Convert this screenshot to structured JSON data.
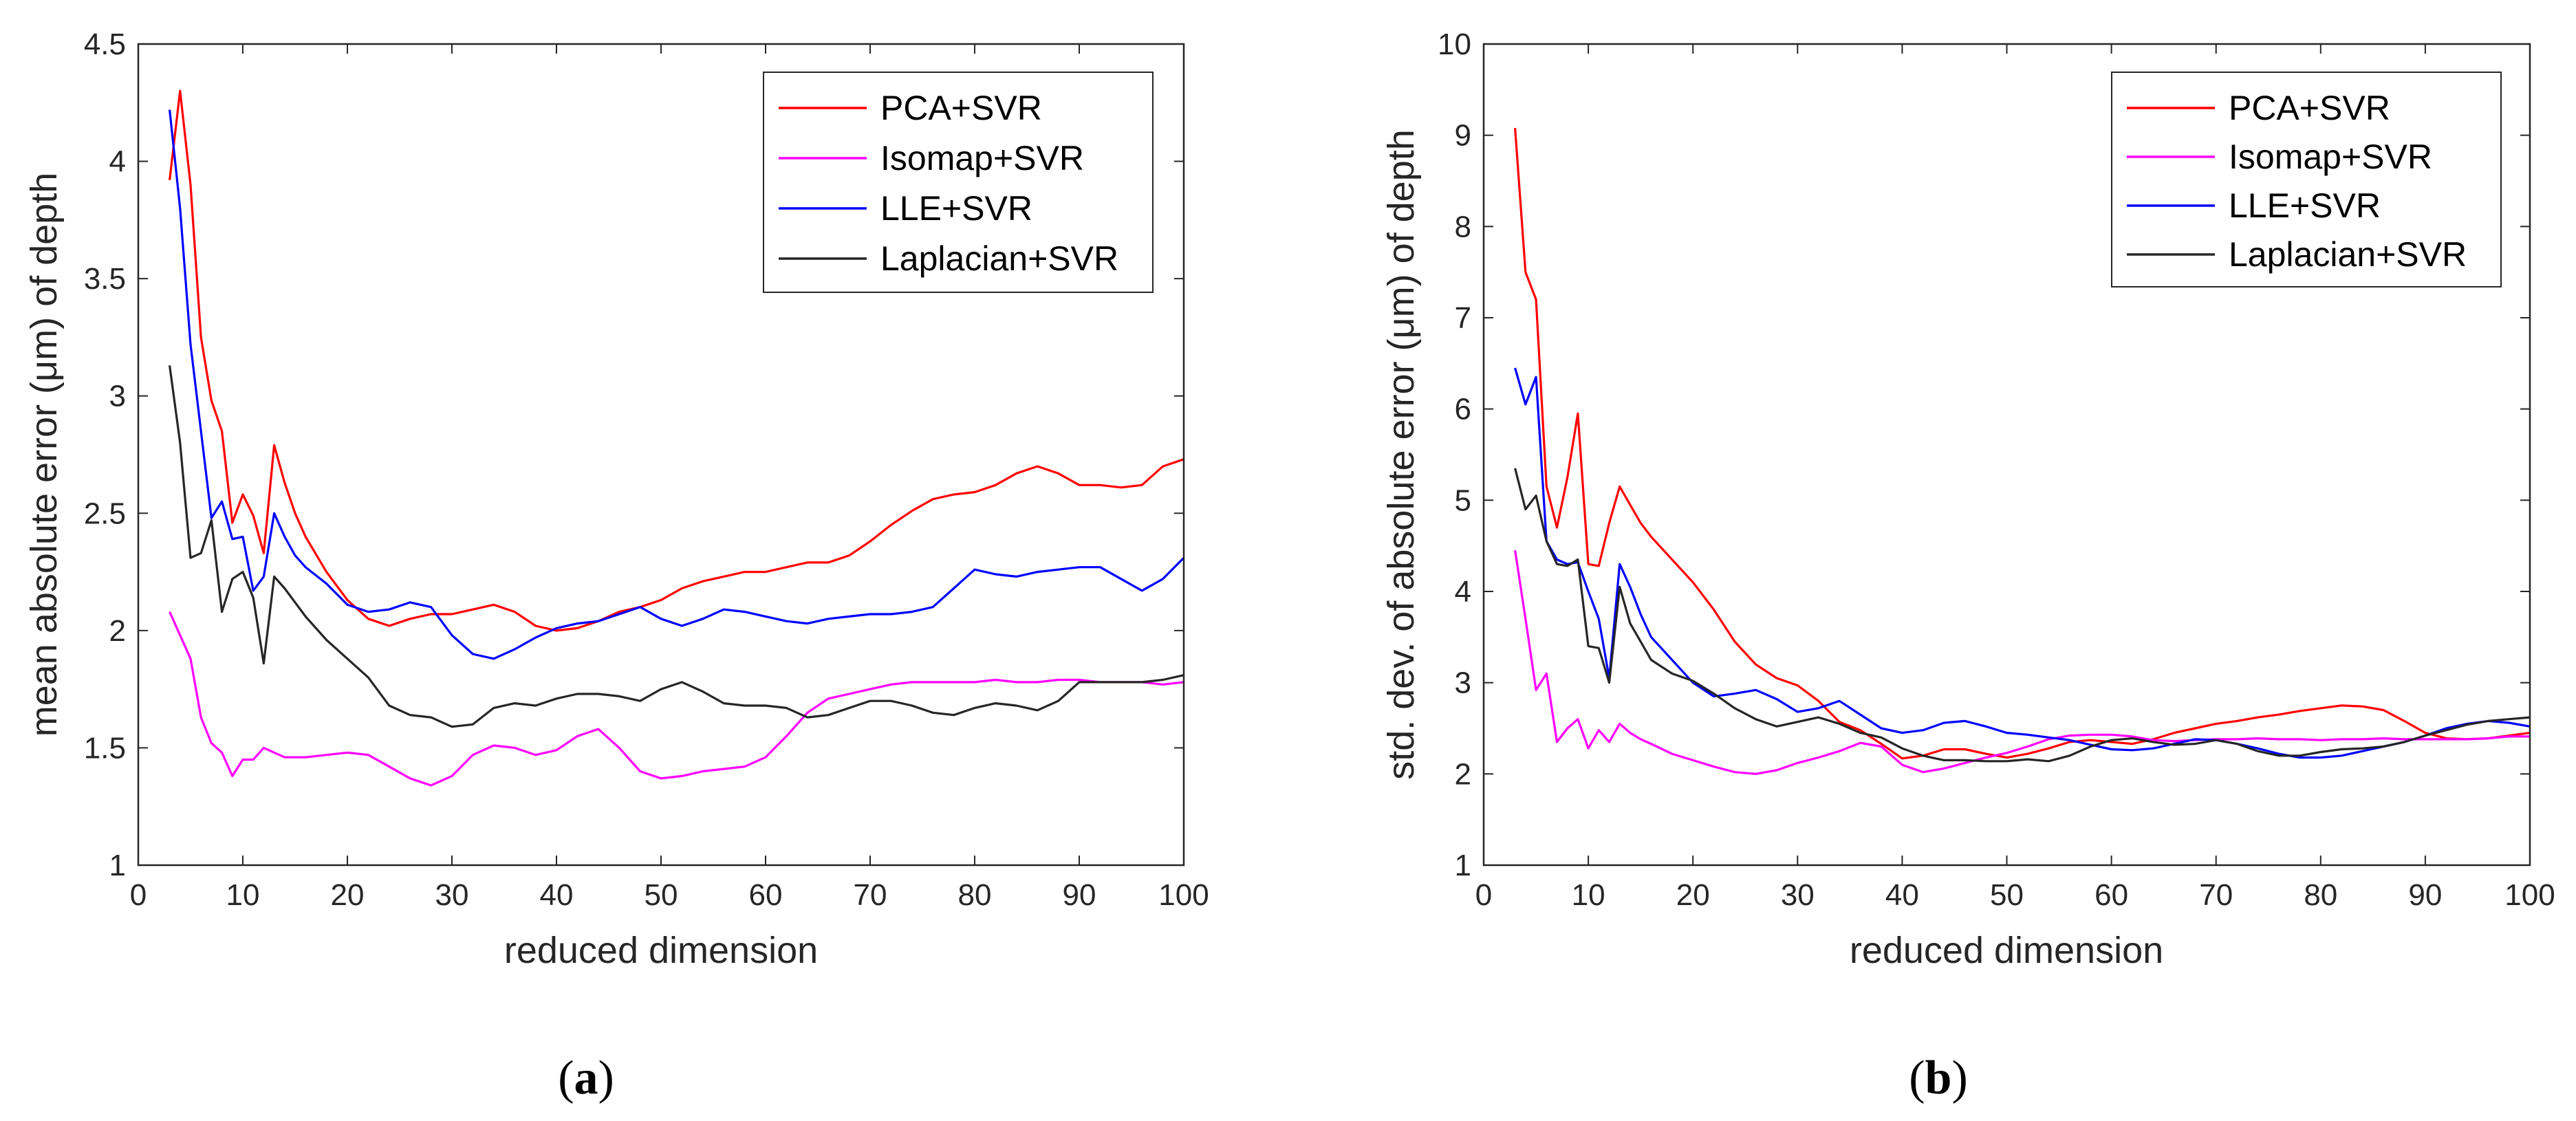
{
  "chart_data": [
    {
      "type": "line",
      "caption": "(a)",
      "caption_paren_open": "(",
      "caption_letter": "a",
      "caption_paren_close": ")",
      "xlabel": "reduced dimension",
      "ylabel": "mean absolute error (μm) of depth",
      "xlim": [
        0,
        100
      ],
      "ylim": [
        1,
        4.5
      ],
      "xticks": [
        "0",
        "10",
        "20",
        "30",
        "40",
        "50",
        "60",
        "70",
        "80",
        "90",
        "100"
      ],
      "yticks": [
        "1",
        "1.5",
        "2",
        "2.5",
        "3",
        "3.5",
        "4",
        "4.5"
      ],
      "legend": [
        "PCA+SVR",
        "Isomap+SVR",
        "LLE+SVR",
        "Laplacian+SVR"
      ],
      "x": [
        3,
        4,
        5,
        6,
        7,
        8,
        9,
        10,
        11,
        12,
        13,
        14,
        15,
        16,
        18,
        20,
        22,
        24,
        26,
        28,
        30,
        32,
        34,
        36,
        38,
        40,
        42,
        44,
        46,
        48,
        50,
        52,
        54,
        56,
        58,
        60,
        62,
        64,
        66,
        68,
        70,
        72,
        74,
        76,
        78,
        80,
        82,
        84,
        86,
        88,
        90,
        92,
        94,
        96,
        98,
        100
      ],
      "series": [
        {
          "name": "PCA+SVR",
          "color": "#ff0000",
          "values": [
            3.92,
            4.3,
            3.9,
            3.25,
            2.98,
            2.85,
            2.46,
            2.58,
            2.49,
            2.33,
            2.79,
            2.63,
            2.5,
            2.4,
            2.25,
            2.13,
            2.05,
            2.02,
            2.05,
            2.07,
            2.07,
            2.09,
            2.11,
            2.08,
            2.02,
            2.0,
            2.01,
            2.04,
            2.08,
            2.1,
            2.13,
            2.18,
            2.21,
            2.23,
            2.25,
            2.25,
            2.27,
            2.29,
            2.29,
            2.32,
            2.38,
            2.45,
            2.51,
            2.56,
            2.58,
            2.59,
            2.62,
            2.67,
            2.7,
            2.67,
            2.62,
            2.62,
            2.61,
            2.62,
            2.7,
            2.73
          ]
        },
        {
          "name": "Isomap+SVR",
          "color": "#ff00ff",
          "values": [
            2.08,
            1.98,
            1.88,
            1.63,
            1.52,
            1.48,
            1.38,
            1.45,
            1.45,
            1.5,
            1.48,
            1.46,
            1.46,
            1.46,
            1.47,
            1.48,
            1.47,
            1.42,
            1.37,
            1.34,
            1.38,
            1.47,
            1.51,
            1.5,
            1.47,
            1.49,
            1.55,
            1.58,
            1.5,
            1.4,
            1.37,
            1.38,
            1.4,
            1.41,
            1.42,
            1.46,
            1.55,
            1.65,
            1.71,
            1.73,
            1.75,
            1.77,
            1.78,
            1.78,
            1.78,
            1.78,
            1.79,
            1.78,
            1.78,
            1.79,
            1.79,
            1.78,
            1.78,
            1.78,
            1.77,
            1.78
          ]
        },
        {
          "name": "LLE+SVR",
          "color": "#0000ff",
          "values": [
            4.22,
            3.8,
            3.22,
            2.85,
            2.48,
            2.55,
            2.39,
            2.4,
            2.17,
            2.23,
            2.5,
            2.4,
            2.32,
            2.27,
            2.2,
            2.11,
            2.08,
            2.09,
            2.12,
            2.1,
            1.98,
            1.9,
            1.88,
            1.92,
            1.97,
            2.01,
            2.03,
            2.04,
            2.07,
            2.1,
            2.05,
            2.02,
            2.05,
            2.09,
            2.08,
            2.06,
            2.04,
            2.03,
            2.05,
            2.06,
            2.07,
            2.07,
            2.08,
            2.1,
            2.18,
            2.26,
            2.24,
            2.23,
            2.25,
            2.26,
            2.27,
            2.27,
            2.22,
            2.17,
            2.22,
            2.31
          ]
        },
        {
          "name": "Laplacian+SVR",
          "color": "#262626",
          "values": [
            3.13,
            2.8,
            2.31,
            2.33,
            2.47,
            2.08,
            2.22,
            2.25,
            2.14,
            1.86,
            2.23,
            2.18,
            2.12,
            2.06,
            1.96,
            1.88,
            1.8,
            1.68,
            1.64,
            1.63,
            1.59,
            1.6,
            1.67,
            1.69,
            1.68,
            1.71,
            1.73,
            1.73,
            1.72,
            1.7,
            1.75,
            1.78,
            1.74,
            1.69,
            1.68,
            1.68,
            1.67,
            1.63,
            1.64,
            1.67,
            1.7,
            1.7,
            1.68,
            1.65,
            1.64,
            1.67,
            1.69,
            1.68,
            1.66,
            1.7,
            1.78,
            1.78,
            1.78,
            1.78,
            1.79,
            1.81
          ]
        }
      ]
    },
    {
      "type": "line",
      "caption": "(b)",
      "caption_paren_open": "(",
      "caption_letter": "b",
      "caption_paren_close": ")",
      "xlabel": "reduced dimension",
      "ylabel": "std. dev. of absolute error (μm) of depth",
      "xlim": [
        0,
        100
      ],
      "ylim": [
        1,
        10
      ],
      "xticks": [
        "0",
        "10",
        "20",
        "30",
        "40",
        "50",
        "60",
        "70",
        "80",
        "90",
        "100"
      ],
      "yticks": [
        "1",
        "2",
        "3",
        "4",
        "5",
        "6",
        "7",
        "8",
        "9",
        "10"
      ],
      "legend": [
        "PCA+SVR",
        "Isomap+SVR",
        "LLE+SVR",
        "Laplacian+SVR"
      ],
      "x": [
        3,
        4,
        5,
        6,
        7,
        8,
        9,
        10,
        11,
        12,
        13,
        14,
        15,
        16,
        18,
        20,
        22,
        24,
        26,
        28,
        30,
        32,
        34,
        36,
        38,
        40,
        42,
        44,
        46,
        48,
        50,
        52,
        54,
        56,
        58,
        60,
        62,
        64,
        66,
        68,
        70,
        72,
        74,
        76,
        78,
        80,
        82,
        84,
        86,
        88,
        90,
        92,
        94,
        96,
        98,
        100
      ],
      "series": [
        {
          "name": "PCA+SVR",
          "color": "#ff0000",
          "values": [
            9.08,
            7.5,
            7.2,
            5.15,
            4.7,
            5.25,
            5.95,
            4.3,
            4.28,
            4.75,
            5.15,
            4.95,
            4.75,
            4.6,
            4.35,
            4.1,
            3.8,
            3.45,
            3.2,
            3.05,
            2.97,
            2.8,
            2.57,
            2.48,
            2.33,
            2.17,
            2.2,
            2.27,
            2.27,
            2.22,
            2.18,
            2.22,
            2.28,
            2.35,
            2.37,
            2.35,
            2.33,
            2.38,
            2.45,
            2.5,
            2.55,
            2.58,
            2.62,
            2.65,
            2.69,
            2.72,
            2.75,
            2.74,
            2.7,
            2.58,
            2.45,
            2.39,
            2.38,
            2.39,
            2.42,
            2.45
          ]
        },
        {
          "name": "Isomap+SVR",
          "color": "#ff00ff",
          "values": [
            4.45,
            3.7,
            2.92,
            3.1,
            2.35,
            2.5,
            2.6,
            2.28,
            2.48,
            2.35,
            2.55,
            2.45,
            2.38,
            2.33,
            2.22,
            2.15,
            2.08,
            2.02,
            2.0,
            2.04,
            2.12,
            2.18,
            2.25,
            2.34,
            2.3,
            2.1,
            2.02,
            2.06,
            2.12,
            2.18,
            2.23,
            2.3,
            2.38,
            2.42,
            2.43,
            2.43,
            2.41,
            2.37,
            2.36,
            2.37,
            2.38,
            2.38,
            2.39,
            2.38,
            2.38,
            2.37,
            2.38,
            2.38,
            2.39,
            2.38,
            2.38,
            2.38,
            2.38,
            2.39,
            2.41,
            2.41
          ]
        },
        {
          "name": "LLE+SVR",
          "color": "#0000ff",
          "values": [
            6.45,
            6.05,
            6.35,
            4.55,
            4.35,
            4.3,
            4.32,
            4.0,
            3.7,
            3.05,
            4.3,
            4.05,
            3.75,
            3.5,
            3.25,
            3.0,
            2.85,
            2.88,
            2.92,
            2.82,
            2.68,
            2.72,
            2.8,
            2.65,
            2.5,
            2.45,
            2.48,
            2.56,
            2.58,
            2.52,
            2.45,
            2.43,
            2.4,
            2.37,
            2.32,
            2.27,
            2.26,
            2.28,
            2.33,
            2.38,
            2.37,
            2.33,
            2.28,
            2.22,
            2.18,
            2.18,
            2.2,
            2.25,
            2.3,
            2.35,
            2.42,
            2.5,
            2.55,
            2.58,
            2.56,
            2.52
          ]
        },
        {
          "name": "Laplacian+SVR",
          "color": "#262626",
          "values": [
            5.35,
            4.9,
            5.05,
            4.55,
            4.3,
            4.28,
            4.35,
            3.4,
            3.38,
            3.0,
            4.05,
            3.65,
            3.45,
            3.25,
            3.1,
            3.02,
            2.88,
            2.72,
            2.6,
            2.52,
            2.57,
            2.62,
            2.55,
            2.45,
            2.4,
            2.28,
            2.2,
            2.15,
            2.15,
            2.14,
            2.14,
            2.16,
            2.14,
            2.2,
            2.3,
            2.37,
            2.39,
            2.35,
            2.32,
            2.33,
            2.37,
            2.33,
            2.25,
            2.2,
            2.2,
            2.24,
            2.27,
            2.28,
            2.3,
            2.35,
            2.42,
            2.48,
            2.54,
            2.58,
            2.6,
            2.62
          ]
        }
      ]
    }
  ]
}
